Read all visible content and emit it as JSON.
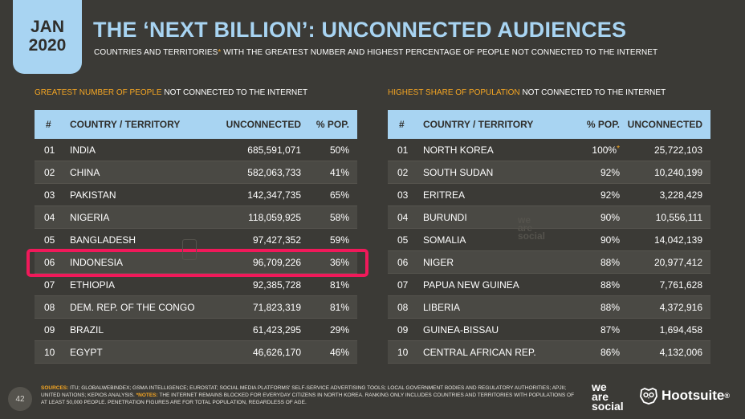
{
  "badge": {
    "month": "JAN",
    "year": "2020"
  },
  "title": "THE ‘NEXT BILLION’: UNCONNECTED AUDIENCES",
  "subtitle": {
    "pre": "COUNTRIES AND TERRITORIES",
    "star": "*",
    "post": " WITH THE GREATEST NUMBER AND HIGHEST PERCENTAGE OF PEOPLE NOT CONNECTED TO THE INTERNET"
  },
  "left_section": {
    "accent": "GREATEST NUMBER OF PEOPLE",
    "rest": " NOT CONNECTED TO THE INTERNET"
  },
  "right_section": {
    "accent": "HIGHEST SHARE OF POPULATION",
    "rest": " NOT CONNECTED TO THE INTERNET"
  },
  "left_table": {
    "headers": {
      "num": "#",
      "country": "COUNTRY / TERRITORY",
      "unconnected": "UNCONNECTED",
      "pct": "% POP."
    },
    "rows": [
      {
        "num": "01",
        "country": "INDIA",
        "unconnected": "685,591,071",
        "pct": "50%"
      },
      {
        "num": "02",
        "country": "CHINA",
        "unconnected": "582,063,733",
        "pct": "41%"
      },
      {
        "num": "03",
        "country": "PAKISTAN",
        "unconnected": "142,347,735",
        "pct": "65%"
      },
      {
        "num": "04",
        "country": "NIGERIA",
        "unconnected": "118,059,925",
        "pct": "58%"
      },
      {
        "num": "05",
        "country": "BANGLADESH",
        "unconnected": "97,427,352",
        "pct": "59%"
      },
      {
        "num": "06",
        "country": "INDONESIA",
        "unconnected": "96,709,226",
        "pct": "36%"
      },
      {
        "num": "07",
        "country": "ETHIOPIA",
        "unconnected": "92,385,728",
        "pct": "81%"
      },
      {
        "num": "08",
        "country": "DEM. REP. OF THE CONGO",
        "unconnected": "71,823,319",
        "pct": "81%"
      },
      {
        "num": "09",
        "country": "BRAZIL",
        "unconnected": "61,423,295",
        "pct": "29%"
      },
      {
        "num": "10",
        "country": "EGYPT",
        "unconnected": "46,626,170",
        "pct": "46%"
      }
    ]
  },
  "right_table": {
    "headers": {
      "num": "#",
      "country": "COUNTRY / TERRITORY",
      "pct": "% POP.",
      "unconnected": "UNCONNECTED"
    },
    "rows": [
      {
        "num": "01",
        "country": "NORTH KOREA",
        "pct": "100%",
        "star": "*",
        "unconnected": "25,722,103"
      },
      {
        "num": "02",
        "country": "SOUTH SUDAN",
        "pct": "92%",
        "star": "",
        "unconnected": "10,240,199"
      },
      {
        "num": "03",
        "country": "ERITREA",
        "pct": "92%",
        "star": "",
        "unconnected": "3,228,429"
      },
      {
        "num": "04",
        "country": "BURUNDI",
        "pct": "90%",
        "star": "",
        "unconnected": "10,556,111"
      },
      {
        "num": "05",
        "country": "SOMALIA",
        "pct": "90%",
        "star": "",
        "unconnected": "14,042,139"
      },
      {
        "num": "06",
        "country": "NIGER",
        "pct": "88%",
        "star": "",
        "unconnected": "20,977,412"
      },
      {
        "num": "07",
        "country": "PAPUA NEW GUINEA",
        "pct": "88%",
        "star": "",
        "unconnected": "7,761,628"
      },
      {
        "num": "08",
        "country": "LIBERIA",
        "pct": "88%",
        "star": "",
        "unconnected": "4,372,916"
      },
      {
        "num": "09",
        "country": "GUINEA-BISSAU",
        "pct": "87%",
        "star": "",
        "unconnected": "1,694,458"
      },
      {
        "num": "10",
        "country": "CENTRAL AFRICAN REP.",
        "pct": "86%",
        "star": "",
        "unconnected": "4,132,006"
      }
    ]
  },
  "highlighted_row": "06",
  "watermark": {
    "line1": "we",
    "line2": "are",
    "line3": "social"
  },
  "page_number": "42",
  "footer": {
    "sources_label": "SOURCES:",
    "sources_text": " ITU; GLOBALWEBINDEX; GSMA INTELLIGENCE; EUROSTAT; SOCIAL MEDIA PLATFORMS' SELF-SERVICE ADVERTISING TOOLS; LOCAL GOVERNMENT BODIES AND REGULATORY AUTHORITIES; APJII; UNITED NATIONS; KEPIOS ANALYSIS. ",
    "notes_label": "*NOTES:",
    "notes_text": " THE INTERNET REMAINS BLOCKED FOR EVERYDAY CITIZENS IN NORTH KOREA. RANKING ONLY INCLUDES COUNTRIES AND TERRITORIES WITH POPULATIONS OF AT LEAST 50,000 PEOPLE. PENETRATION FIGURES ARE FOR TOTAL POPULATION, REGARDLESS OF AGE."
  },
  "logos": {
    "we_are_social": [
      "we",
      "are",
      "social"
    ],
    "hootsuite": "Hootsuite",
    "registered": "®"
  },
  "colors": {
    "background": "#3b3a36",
    "accent_blue": "#a8d4f2",
    "accent_orange": "#f5a623",
    "highlight": "#f0195a"
  }
}
